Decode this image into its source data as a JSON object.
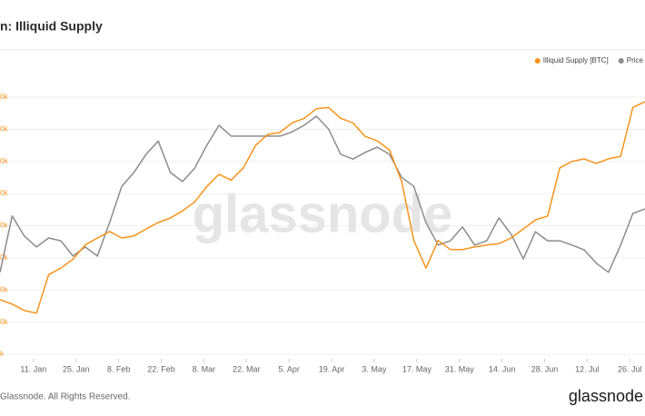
{
  "chart_data": {
    "type": "line",
    "title": "n: Illiquid Supply",
    "watermark": "glassnode",
    "x": [
      0,
      4,
      8,
      12,
      16,
      20,
      24,
      28,
      32,
      36,
      40,
      44,
      48,
      52,
      56,
      60,
      64,
      68,
      72,
      76,
      80,
      84,
      88,
      92,
      96,
      100,
      104,
      108,
      112,
      116,
      120,
      124,
      128,
      132,
      136,
      140,
      144,
      148,
      152,
      156,
      160,
      164,
      168,
      172,
      176,
      180,
      184,
      188,
      192,
      196,
      200,
      204,
      208,
      212
    ],
    "xlim": [
      0,
      212
    ],
    "xticks": [
      {
        "value": 11,
        "label": "11. Jan"
      },
      {
        "value": 25,
        "label": "25. Jan"
      },
      {
        "value": 39,
        "label": "8. Feb"
      },
      {
        "value": 53,
        "label": "22. Feb"
      },
      {
        "value": 67,
        "label": "8. Mar"
      },
      {
        "value": 81,
        "label": "22. Mar"
      },
      {
        "value": 95,
        "label": "5. Apr"
      },
      {
        "value": 109,
        "label": "19. Apr"
      },
      {
        "value": 123,
        "label": "3. May"
      },
      {
        "value": 137,
        "label": "17. May"
      },
      {
        "value": 151,
        "label": "31. May"
      },
      {
        "value": 165,
        "label": "14. Jun"
      },
      {
        "value": 179,
        "label": "28. Jun"
      },
      {
        "value": 193,
        "label": "12. Jul"
      },
      {
        "value": 207,
        "label": "26. Jul"
      }
    ],
    "ylim": [
      14193,
      14624
    ],
    "yticks": [
      {
        "value": 14600,
        "label": "0k"
      },
      {
        "value": 14550,
        "label": "0k"
      },
      {
        "value": 14500,
        "label": "0k"
      },
      {
        "value": 14450,
        "label": "0k"
      },
      {
        "value": 14400,
        "label": "0k"
      },
      {
        "value": 14350,
        "label": "0k"
      },
      {
        "value": 14300,
        "label": "0k"
      },
      {
        "value": 14250,
        "label": "0k"
      },
      {
        "value": 14200,
        "label": "k"
      }
    ],
    "y2lim": [
      10000,
      68000
    ],
    "grid": true,
    "legend": "top-right",
    "series": [
      {
        "name": "Illiquid Supply [BTC]",
        "color": "#f7931a",
        "values": [
          14285,
          14278,
          14268,
          14264,
          14324,
          14334,
          14348,
          14370,
          14381,
          14391,
          14381,
          14384,
          14395,
          14405,
          14412,
          14423,
          14437,
          14461,
          14480,
          14471,
          14490,
          14525,
          14542,
          14545,
          14560,
          14567,
          14582,
          14584,
          14567,
          14560,
          14539,
          14532,
          14518,
          14469,
          14377,
          14334,
          14377,
          14363,
          14363,
          14367,
          14370,
          14372,
          14381,
          14395,
          14409,
          14415,
          14490,
          14500,
          14504,
          14497,
          14504,
          14508,
          14584,
          14593
        ]
      },
      {
        "name": "Price",
        "color": "#8c8c8c",
        "axis": "y2",
        "values": [
          28100,
          39900,
          35700,
          33400,
          35300,
          34700,
          31500,
          33400,
          31500,
          38500,
          46100,
          49000,
          52800,
          55600,
          49000,
          47100,
          49900,
          54700,
          58900,
          56600,
          56600,
          56600,
          56600,
          56600,
          57500,
          58900,
          60800,
          58100,
          52800,
          51800,
          53200,
          54300,
          52800,
          48000,
          46100,
          38500,
          33800,
          34700,
          37600,
          33800,
          34700,
          39500,
          36100,
          30900,
          36600,
          34700,
          34700,
          33800,
          32800,
          30000,
          28100,
          33800,
          40400,
          41400
        ]
      }
    ]
  },
  "footer": "Glassnode. All Rights Reserved.",
  "logo": "glassnode"
}
